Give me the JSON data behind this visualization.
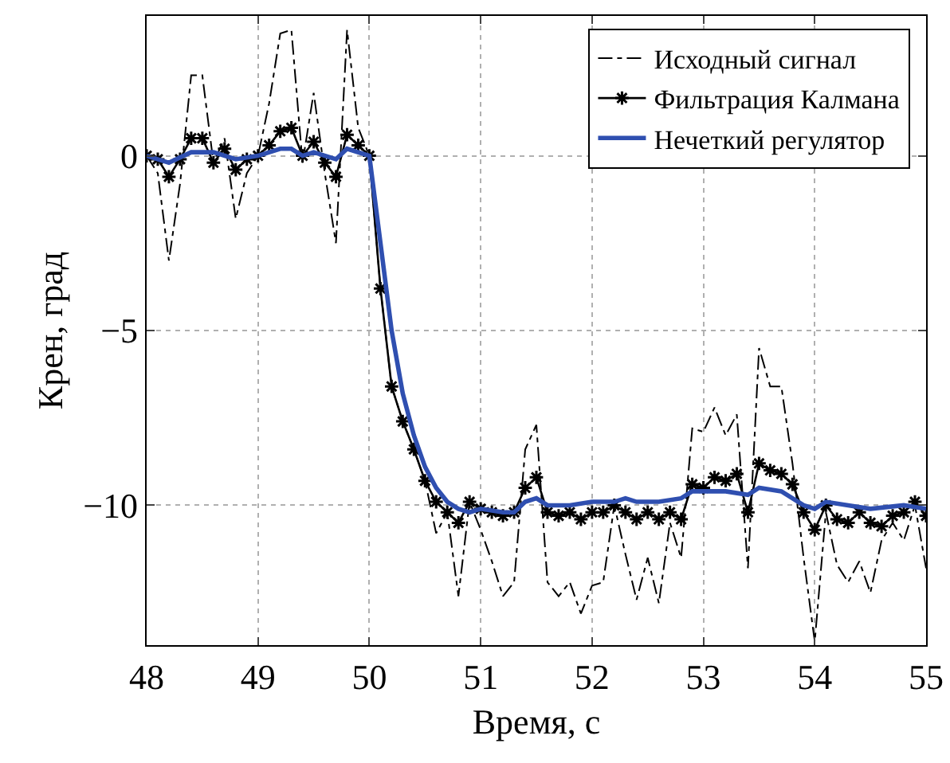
{
  "chart_data": {
    "type": "line",
    "xlabel": "Время, с",
    "ylabel": "Крен, град",
    "xlim": [
      48,
      55
    ],
    "xticks": [
      48,
      49,
      50,
      51,
      52,
      53,
      54,
      55
    ],
    "ylim": [
      -14,
      4
    ],
    "yticks": [
      {
        "value": 0,
        "label": "0"
      },
      {
        "value": -5,
        "label": "−5"
      },
      {
        "value": -10,
        "label": "−10"
      }
    ],
    "grid": true,
    "legend": "top right",
    "x": [
      48,
      48.1,
      48.2,
      48.3,
      48.4,
      48.5,
      48.6,
      48.7,
      48.8,
      48.9,
      49,
      49.1,
      49.2,
      49.3,
      49.4,
      49.5,
      49.6,
      49.7,
      49.8,
      49.9,
      50,
      50.1,
      50.2,
      50.3,
      50.4,
      50.5,
      50.6,
      50.7,
      50.8,
      50.9,
      51,
      51.1,
      51.2,
      51.3,
      51.4,
      51.5,
      51.6,
      51.7,
      51.8,
      51.9,
      52,
      52.1,
      52.2,
      52.3,
      52.4,
      52.5,
      52.6,
      52.7,
      52.8,
      52.9,
      53,
      53.1,
      53.2,
      53.3,
      53.4,
      53.5,
      53.6,
      53.7,
      53.8,
      53.9,
      54,
      54.1,
      54.2,
      54.3,
      54.4,
      54.5,
      54.6,
      54.7,
      54.8,
      54.9,
      55
    ],
    "series": [
      {
        "name": "Исходный сигнал",
        "color": "#000000",
        "line_style": "dashdot",
        "marker": "none",
        "values": [
          0,
          -0.5,
          -3.0,
          -0.8,
          2.3,
          2.3,
          -0.2,
          0.5,
          -1.8,
          -0.5,
          0,
          1.5,
          3.5,
          3.6,
          -0.2,
          1.8,
          -0.5,
          -2.5,
          3.6,
          0.8,
          0,
          -3.8,
          -6.6,
          -7.6,
          -8.4,
          -9.3,
          -10.8,
          -10.2,
          -12.6,
          -9.9,
          -10.7,
          -11.6,
          -12.6,
          -12.2,
          -8.4,
          -7.7,
          -12.2,
          -12.6,
          -12.2,
          -13.1,
          -12.3,
          -12.2,
          -10.0,
          -11.4,
          -12.7,
          -11.5,
          -12.8,
          -10.5,
          -11.5,
          -7.8,
          -7.9,
          -7.2,
          -8.0,
          -7.4,
          -11.8,
          -5.5,
          -6.6,
          -6.6,
          -8.8,
          -11.5,
          -13.9,
          -10.2,
          -11.7,
          -12.2,
          -11.6,
          -12.5,
          -11.0,
          -10.5,
          -11.0,
          -10.0,
          -11.8
        ]
      },
      {
        "name": "Фильтрация Калмана",
        "color": "#000000",
        "line_style": "solid",
        "marker": "cross",
        "values": [
          0,
          -0.1,
          -0.6,
          -0.1,
          0.5,
          0.5,
          -0.2,
          0.2,
          -0.4,
          -0.1,
          0,
          0.3,
          0.7,
          0.8,
          0,
          0.4,
          -0.2,
          -0.6,
          0.6,
          0.3,
          0,
          -3.8,
          -6.6,
          -7.6,
          -8.4,
          -9.3,
          -9.9,
          -10.2,
          -10.5,
          -9.9,
          -10.1,
          -10.2,
          -10.3,
          -10.2,
          -9.5,
          -9.2,
          -10.2,
          -10.3,
          -10.2,
          -10.4,
          -10.2,
          -10.2,
          -10.0,
          -10.2,
          -10.4,
          -10.2,
          -10.4,
          -10.2,
          -10.4,
          -9.4,
          -9.5,
          -9.2,
          -9.3,
          -9.1,
          -10.2,
          -8.8,
          -9.0,
          -9.1,
          -9.4,
          -10.2,
          -10.7,
          -10.0,
          -10.4,
          -10.5,
          -10.2,
          -10.5,
          -10.6,
          -10.3,
          -10.2,
          -9.9,
          -10.3
        ]
      },
      {
        "name": "Нечеткий регулятор",
        "color": "#2f4fb0",
        "line_style": "solid",
        "marker": "none",
        "x": [
          48,
          48.2,
          48.4,
          48.6,
          48.8,
          49,
          49.2,
          49.3,
          49.4,
          49.5,
          49.7,
          49.8,
          50,
          50.1,
          50.2,
          50.3,
          50.4,
          50.5,
          50.6,
          50.7,
          50.8,
          50.9,
          51,
          51.2,
          51.3,
          51.4,
          51.5,
          51.6,
          51.8,
          52,
          52.2,
          52.3,
          52.4,
          52.6,
          52.8,
          52.9,
          53.2,
          53.4,
          53.5,
          53.7,
          53.8,
          53.9,
          54,
          54.1,
          54.3,
          54.5,
          54.8,
          55
        ],
        "values": [
          0,
          -0.2,
          0.1,
          0.1,
          -0.1,
          0,
          0.2,
          0.2,
          0,
          0.1,
          -0.1,
          0.2,
          0,
          -2.5,
          -5.0,
          -6.8,
          -8.0,
          -8.9,
          -9.5,
          -9.9,
          -10.1,
          -10.2,
          -10.1,
          -10.2,
          -10.2,
          -9.9,
          -9.8,
          -10.0,
          -10.0,
          -9.9,
          -9.9,
          -9.8,
          -9.9,
          -9.9,
          -9.8,
          -9.6,
          -9.6,
          -9.7,
          -9.5,
          -9.6,
          -9.8,
          -10.0,
          -10.1,
          -9.9,
          -10.0,
          -10.1,
          -10.0,
          -10.1
        ]
      }
    ]
  }
}
